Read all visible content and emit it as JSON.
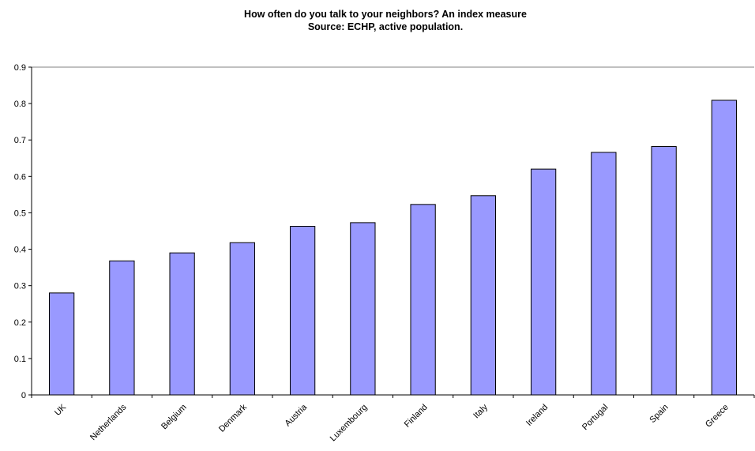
{
  "chart_data": {
    "type": "bar",
    "title": "How often do you talk to your neighbors? An index measure",
    "subtitle": "Source: ECHP, active population.",
    "xlabel": "",
    "ylabel": "",
    "categories": [
      "UK",
      "Netherlands",
      "Belgium",
      "Denmark",
      "Austria",
      "Luxembourg",
      "Finland",
      "Italy",
      "Ireland",
      "Portugal",
      "Spain",
      "Greece"
    ],
    "values": [
      0.28,
      0.368,
      0.39,
      0.418,
      0.463,
      0.473,
      0.523,
      0.547,
      0.62,
      0.666,
      0.682,
      0.809
    ],
    "ylim": [
      0,
      0.9
    ],
    "yticks": [
      "0",
      "0.1",
      "0.2",
      "0.3",
      "0.4",
      "0.5",
      "0.6",
      "0.7",
      "0.8",
      "0.9"
    ],
    "grid": false,
    "legend": "none",
    "colors": {
      "bar_fill": "#9999ff",
      "bar_stroke": "#000000",
      "axis": "#000000",
      "plot_border": "#808080"
    }
  }
}
